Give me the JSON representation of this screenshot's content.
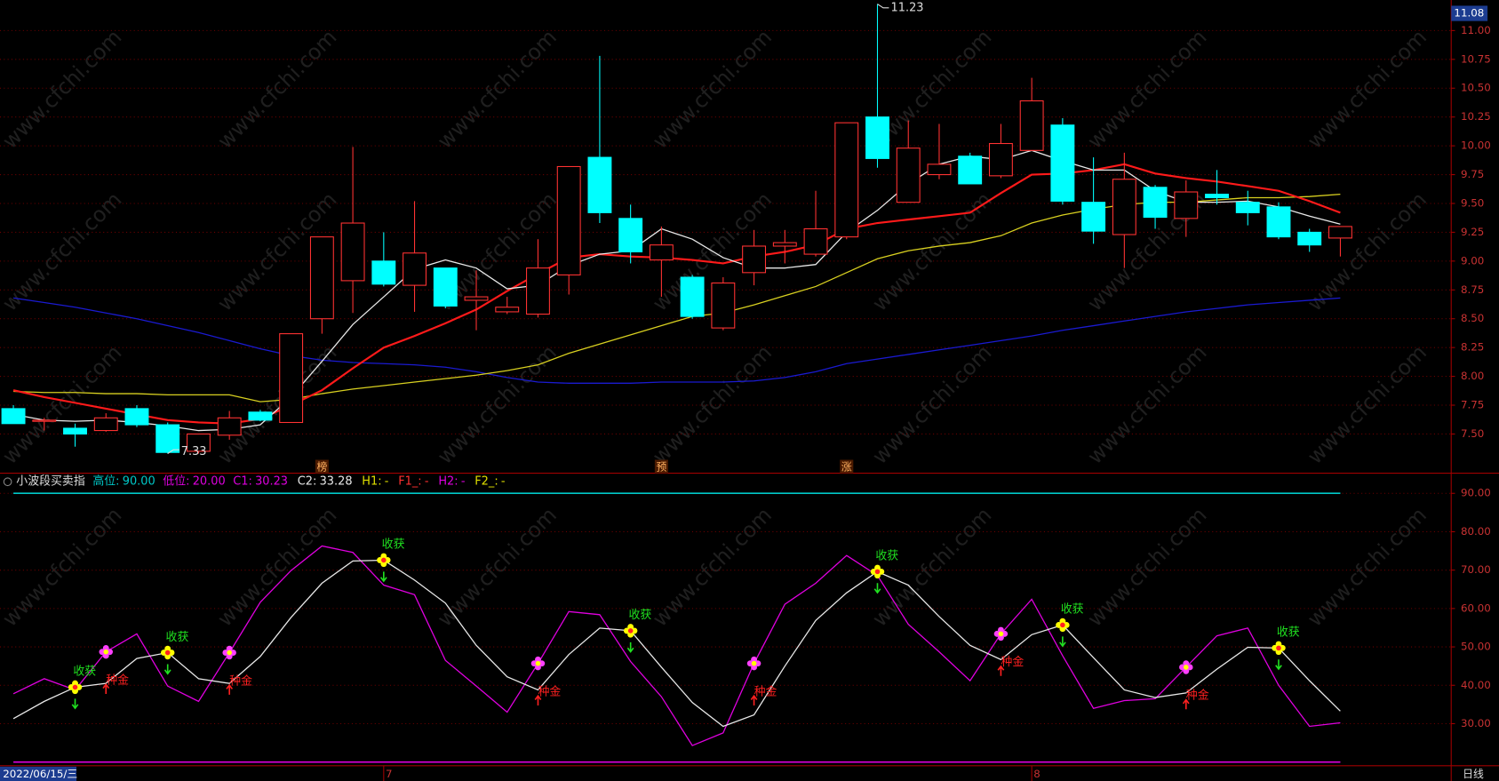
{
  "watermark": "www.cfchi.com",
  "chart_data": [
    {
      "type": "candlestick",
      "categories": [
        null,
        null,
        null,
        null,
        null,
        null,
        null,
        null,
        null,
        null,
        null,
        null,
        "7",
        null,
        null,
        null,
        null,
        null,
        null,
        null,
        null,
        null,
        null,
        null,
        null,
        null,
        null,
        null,
        null,
        null,
        null,
        null,
        null,
        "8",
        null,
        null,
        null,
        null,
        null,
        null,
        null,
        null,
        null,
        null
      ],
      "open": [
        7.72,
        7.61,
        7.55,
        7.53,
        7.72,
        7.58,
        7.35,
        7.49,
        7.69,
        7.6,
        8.5,
        8.83,
        9.0,
        8.79,
        8.94,
        8.66,
        8.56,
        8.54,
        8.88,
        9.9,
        9.37,
        9.01,
        8.86,
        8.42,
        8.9,
        9.13,
        9.06,
        9.21,
        10.25,
        9.51,
        9.75,
        9.91,
        9.74,
        9.96,
        10.18,
        9.51,
        9.23,
        9.64,
        9.37,
        9.58,
        9.51,
        9.47,
        9.25,
        9.2
      ],
      "high": [
        7.75,
        7.64,
        7.59,
        7.68,
        7.75,
        7.6,
        7.5,
        7.7,
        7.71,
        8.37,
        9.21,
        9.99,
        9.25,
        9.52,
        8.94,
        8.92,
        8.69,
        9.19,
        9.82,
        10.78,
        9.49,
        9.3,
        8.88,
        8.86,
        9.27,
        9.27,
        9.61,
        10.2,
        11.23,
        10.22,
        10.19,
        9.94,
        10.19,
        10.59,
        10.24,
        9.9,
        9.94,
        9.66,
        9.7,
        9.79,
        9.61,
        9.51,
        9.28,
        9.3
      ],
      "low": [
        7.59,
        7.53,
        7.39,
        7.52,
        7.56,
        7.33,
        7.33,
        7.45,
        7.61,
        7.6,
        8.37,
        8.55,
        8.78,
        8.56,
        8.59,
        8.4,
        8.54,
        8.51,
        8.71,
        9.33,
        8.98,
        8.69,
        8.5,
        8.4,
        8.79,
        8.98,
        9.04,
        9.19,
        9.81,
        9.51,
        9.71,
        9.67,
        9.72,
        9.96,
        9.49,
        9.15,
        8.94,
        9.28,
        9.21,
        9.49,
        9.31,
        9.19,
        9.08,
        9.04
      ],
      "close": [
        7.59,
        7.62,
        7.5,
        7.64,
        7.58,
        7.34,
        7.5,
        7.64,
        7.62,
        8.37,
        9.21,
        9.33,
        8.8,
        9.07,
        8.61,
        8.69,
        8.6,
        8.94,
        9.82,
        9.42,
        9.08,
        9.14,
        8.52,
        8.81,
        9.13,
        9.16,
        9.28,
        10.2,
        9.89,
        9.98,
        9.84,
        9.67,
        10.02,
        10.39,
        9.52,
        9.26,
        9.71,
        9.38,
        9.6,
        9.55,
        9.42,
        9.21,
        9.14,
        9.3
      ],
      "up_color": "#ff3232",
      "down_color": "#00ffff",
      "moving_averages": [
        {
          "color": "#1a1ad0",
          "values": [
            8.68,
            8.64,
            8.6,
            8.55,
            8.5,
            8.44,
            8.38,
            8.31,
            8.24,
            8.18,
            8.14,
            8.12,
            8.11,
            8.1,
            8.08,
            8.04,
            7.99,
            7.95,
            7.94,
            7.94,
            7.94,
            7.95,
            7.95,
            7.95,
            7.96,
            7.99,
            8.04,
            8.11,
            8.15,
            8.19,
            8.23,
            8.27,
            8.31,
            8.35,
            8.4,
            8.44,
            8.48,
            8.52,
            8.56,
            8.59,
            8.62,
            8.64,
            8.66,
            8.68
          ]
        },
        {
          "color": "#d8d020",
          "values": [
            7.87,
            7.86,
            7.86,
            7.85,
            7.85,
            7.84,
            7.84,
            7.84,
            7.78,
            7.8,
            7.85,
            7.89,
            7.92,
            7.95,
            7.98,
            8.01,
            8.05,
            8.1,
            8.2,
            8.28,
            8.36,
            8.44,
            8.52,
            8.55,
            8.62,
            8.7,
            8.78,
            8.9,
            9.02,
            9.09,
            9.13,
            9.16,
            9.22,
            9.33,
            9.4,
            9.45,
            9.49,
            9.51,
            9.51,
            9.53,
            9.55,
            9.55,
            9.56,
            9.58
          ]
        },
        {
          "color": "#ff1a1a",
          "values": [
            7.88,
            7.82,
            7.77,
            7.72,
            7.67,
            7.62,
            7.6,
            7.59,
            7.63,
            7.75,
            7.88,
            8.07,
            8.25,
            8.35,
            8.46,
            8.58,
            8.74,
            8.89,
            9.03,
            9.06,
            9.04,
            9.03,
            9.01,
            8.98,
            9.04,
            9.08,
            9.14,
            9.28,
            9.33,
            9.36,
            9.39,
            9.42,
            9.59,
            9.75,
            9.76,
            9.79,
            9.84,
            9.76,
            9.72,
            9.69,
            9.65,
            9.61,
            9.52,
            9.42
          ]
        },
        {
          "color": "#e8e8e8",
          "values": [
            7.67,
            7.62,
            7.61,
            7.62,
            7.6,
            7.57,
            7.53,
            7.54,
            7.58,
            7.82,
            8.13,
            8.45,
            8.69,
            8.93,
            9.01,
            8.94,
            8.76,
            8.79,
            8.96,
            9.06,
            9.09,
            9.28,
            9.19,
            9.03,
            8.94,
            8.94,
            8.97,
            9.25,
            9.44,
            9.67,
            9.84,
            9.91,
            9.88,
            9.96,
            9.87,
            9.79,
            9.79,
            9.61,
            9.51,
            9.51,
            9.52,
            9.47,
            9.39,
            9.32
          ]
        }
      ],
      "events": [
        null,
        null,
        null,
        null,
        null,
        null,
        null,
        null,
        null,
        null,
        "榜",
        null,
        null,
        null,
        null,
        null,
        null,
        null,
        null,
        null,
        null,
        "预",
        null,
        null,
        null,
        null,
        null,
        "涨",
        null,
        null,
        null,
        null,
        null,
        null,
        null,
        null,
        null,
        null,
        null,
        null,
        null,
        null,
        null,
        null
      ],
      "ylim": [
        7.16,
        11.265
      ],
      "yticks": [
        {
          "value": 7.5,
          "label": "7.50"
        },
        {
          "value": 7.75,
          "label": "7.75"
        },
        {
          "value": 8,
          "label": "8.00"
        },
        {
          "value": 8.25,
          "label": "8.25"
        },
        {
          "value": 8.5,
          "label": "8.50"
        },
        {
          "value": 8.75,
          "label": "8.75"
        },
        {
          "value": 9,
          "label": "9.00"
        },
        {
          "value": 9.25,
          "label": "9.25"
        },
        {
          "value": 9.5,
          "label": "9.50"
        },
        {
          "value": 9.75,
          "label": "9.75"
        },
        {
          "value": 10,
          "label": "10.00"
        },
        {
          "value": 10.25,
          "label": "10.25"
        },
        {
          "value": 10.5,
          "label": "10.50"
        },
        {
          "value": 10.75,
          "label": "10.75"
        },
        {
          "value": 11,
          "label": "11.00"
        }
      ],
      "grid": true,
      "cursor_price": 11.08,
      "cursor_date": "2022/06/15/三",
      "period": "日线"
    },
    {
      "type": "line",
      "title": "小波段买卖指",
      "levels": [
        {
          "name": "高位:",
          "value": 90,
          "label": "90.00",
          "color": "#00c8c8"
        },
        {
          "name": "低位:",
          "value": 20,
          "label": "20.00",
          "color": "#e000e0"
        }
      ],
      "readouts": [
        {
          "name": "C1:",
          "value": 30.23,
          "color": "#e000e0"
        },
        {
          "name": "C2:",
          "value": 33.28,
          "color": "#e8e8e8"
        },
        {
          "name": "H1:",
          "value": "-",
          "color": "#e0e000"
        },
        {
          "name": "F1_:",
          "value": "-",
          "color": "#ff3030"
        },
        {
          "name": "H2:",
          "value": "-",
          "color": "#e000e0"
        },
        {
          "name": "F2_:",
          "value": "-",
          "color": "#e0e000"
        }
      ],
      "series": [
        {
          "color": "#e000e0",
          "values": [
            37.8,
            41.7,
            38.8,
            48.7,
            53.4,
            39.8,
            35.8,
            48.5,
            61.6,
            69.9,
            76.3,
            74.6,
            66.1,
            63.6,
            46.5,
            39.8,
            33.0,
            45.7,
            59.2,
            58.4,
            46.2,
            37.0,
            24.3,
            27.6,
            45.7,
            61.1,
            66.6,
            73.8,
            68.6,
            55.9,
            48.7,
            41.2,
            53.4,
            62.4,
            47.7,
            34.0,
            36.0,
            36.5,
            44.7,
            52.9,
            54.9,
            40.0,
            29.3,
            30.23
          ]
        },
        {
          "color": "#e8e8e8",
          "values": [
            31.3,
            35.8,
            39.5,
            40.5,
            47.0,
            48.5,
            41.7,
            40.5,
            47.5,
            57.7,
            66.6,
            72.4,
            72.6,
            67.4,
            61.4,
            50.4,
            42.2,
            38.8,
            48.0,
            54.9,
            54.2,
            44.7,
            35.5,
            29.3,
            32.3,
            45.0,
            56.9,
            64.1,
            69.6,
            66.1,
            57.9,
            50.4,
            46.7,
            53.2,
            55.7,
            47.2,
            38.8,
            36.8,
            38.0,
            44.2,
            49.9,
            49.7,
            41.2,
            33.28
          ]
        }
      ],
      "sell_signals": {
        "label": "收获",
        "color": "#20e020",
        "values": [
          null,
          null,
          39.5,
          null,
          null,
          48.5,
          null,
          null,
          null,
          null,
          null,
          null,
          72.6,
          null,
          null,
          null,
          null,
          null,
          null,
          null,
          54.2,
          null,
          null,
          null,
          null,
          null,
          null,
          null,
          69.6,
          null,
          null,
          null,
          null,
          null,
          55.7,
          null,
          null,
          null,
          null,
          null,
          null,
          49.7,
          null,
          null
        ]
      },
      "buy_signals": {
        "label": "种金",
        "color": "#ff2020",
        "values": [
          null,
          null,
          null,
          48.7,
          null,
          null,
          null,
          48.5,
          null,
          null,
          null,
          null,
          null,
          null,
          null,
          null,
          null,
          45.7,
          null,
          null,
          null,
          null,
          null,
          null,
          45.7,
          null,
          null,
          null,
          null,
          null,
          null,
          null,
          53.4,
          null,
          null,
          null,
          null,
          null,
          44.7,
          null,
          null,
          null,
          null,
          null
        ]
      },
      "ylim": [
        19.3,
        95
      ],
      "yticks": [
        {
          "value": 30,
          "label": "30.00"
        },
        {
          "value": 40,
          "label": "40.00"
        },
        {
          "value": 50,
          "label": "50.00"
        },
        {
          "value": 60,
          "label": "60.00"
        },
        {
          "value": 70,
          "label": "70.00"
        },
        {
          "value": 80,
          "label": "80.00"
        },
        {
          "value": 90,
          "label": "90.00"
        }
      ],
      "grid": true
    }
  ]
}
